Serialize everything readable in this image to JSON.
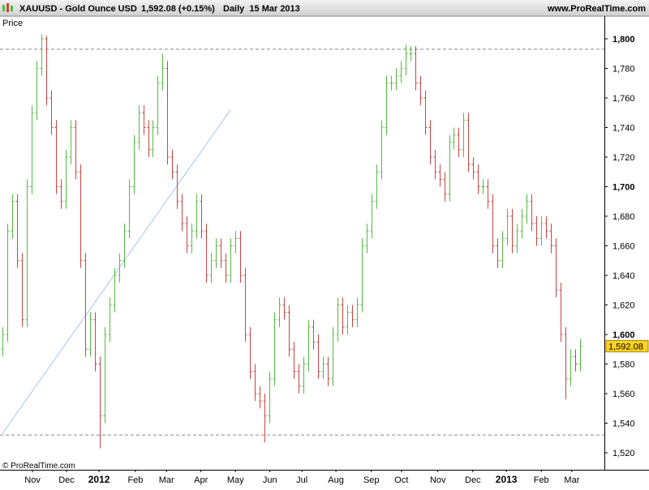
{
  "header": {
    "symbol": "XAUUSD - Gold Ounce USD",
    "quote": "1,592.08 (+0.15%)",
    "period": "Daily  15 Mar 2013",
    "site": "www.ProRealTime.com"
  },
  "chart_data": {
    "type": "ohlc",
    "y_label": "Price",
    "footer": "© ProRealTime.com",
    "up_color": "#55bb44",
    "down_color": "#cc4444",
    "xlim": [
      -0.5,
      124
    ],
    "ylim": [
      1508.5,
      1815.3
    ],
    "xticks": [
      {
        "value": 6.2,
        "label": "Nov"
      },
      {
        "value": 13.2,
        "label": "Dec"
      },
      {
        "value": 19.9,
        "label": "2012"
      },
      {
        "value": 27.4,
        "label": "Feb"
      },
      {
        "value": 33.8,
        "label": "Mar"
      },
      {
        "value": 40.9,
        "label": "Apr"
      },
      {
        "value": 48,
        "label": "May"
      },
      {
        "value": 55.1,
        "label": "Jun"
      },
      {
        "value": 61.7,
        "label": "Jul"
      },
      {
        "value": 68.7,
        "label": "Aug"
      },
      {
        "value": 76,
        "label": "Sep"
      },
      {
        "value": 82.2,
        "label": "Oct"
      },
      {
        "value": 89.7,
        "label": "Nov"
      },
      {
        "value": 96.9,
        "label": "Dec"
      },
      {
        "value": 103.8,
        "label": "2013"
      },
      {
        "value": 111,
        "label": "Feb"
      },
      {
        "value": 117.3,
        "label": "Mar"
      }
    ],
    "yticks": [
      {
        "value": 1520,
        "label": "1,520"
      },
      {
        "value": 1540,
        "label": "1,540"
      },
      {
        "value": 1560,
        "label": "1,560"
      },
      {
        "value": 1580,
        "label": "1,580"
      },
      {
        "value": 1600,
        "label": "1,600"
      },
      {
        "value": 1620,
        "label": "1,620"
      },
      {
        "value": 1640,
        "label": "1,640"
      },
      {
        "value": 1660,
        "label": "1,660"
      },
      {
        "value": 1680,
        "label": "1,680"
      },
      {
        "value": 1700,
        "label": "1,700"
      },
      {
        "value": 1720,
        "label": "1,720"
      },
      {
        "value": 1740,
        "label": "1,740"
      },
      {
        "value": 1760,
        "label": "1,760"
      },
      {
        "value": 1780,
        "label": "1,780"
      },
      {
        "value": 1800,
        "label": "1,800"
      }
    ],
    "hlines": [
      1793,
      1532
    ],
    "trend_line": {
      "x": [
        0,
        47
      ],
      "y": [
        1533,
        1752
      ]
    },
    "last_price": {
      "value": 1592.08,
      "label": "1,592.08"
    },
    "open": [
      1590,
      1600,
      1670,
      1690,
      1650,
      1610,
      1700,
      1750,
      1780,
      1800,
      1760,
      1740,
      1700,
      1690,
      1720,
      1740,
      1710,
      1650,
      1590,
      1610,
      1580,
      1545,
      1600,
      1620,
      1640,
      1650,
      1670,
      1700,
      1730,
      1750,
      1740,
      1725,
      1740,
      1770,
      1780,
      1720,
      1710,
      1690,
      1675,
      1660,
      1670,
      1690,
      1670,
      1640,
      1650,
      1660,
      1650,
      1640,
      1660,
      1665,
      1640,
      1600,
      1575,
      1560,
      1555,
      1545,
      1570,
      1610,
      1620,
      1615,
      1590,
      1575,
      1565,
      1580,
      1605,
      1595,
      1575,
      1580,
      1570,
      1600,
      1620,
      1605,
      1615,
      1610,
      1620,
      1660,
      1670,
      1690,
      1710,
      1740,
      1770,
      1770,
      1775,
      1780,
      1790,
      1790,
      1770,
      1760,
      1740,
      1720,
      1710,
      1705,
      1695,
      1730,
      1735,
      1725,
      1745,
      1715,
      1710,
      1700,
      1700,
      1690,
      1660,
      1650,
      1665,
      1680,
      1660,
      1670,
      1680,
      1690,
      1675,
      1665,
      1675,
      1670,
      1660,
      1630,
      1600,
      1570,
      1585,
      1580
    ],
    "high": [
      1605,
      1675,
      1695,
      1695,
      1655,
      1705,
      1755,
      1785,
      1803,
      1802,
      1765,
      1745,
      1705,
      1725,
      1745,
      1745,
      1715,
      1655,
      1615,
      1615,
      1585,
      1605,
      1625,
      1645,
      1655,
      1675,
      1705,
      1735,
      1755,
      1755,
      1745,
      1745,
      1775,
      1790,
      1785,
      1725,
      1715,
      1695,
      1680,
      1675,
      1695,
      1695,
      1675,
      1655,
      1665,
      1665,
      1655,
      1665,
      1670,
      1670,
      1645,
      1605,
      1580,
      1565,
      1560,
      1575,
      1615,
      1625,
      1625,
      1620,
      1595,
      1580,
      1585,
      1610,
      1610,
      1600,
      1585,
      1585,
      1605,
      1625,
      1625,
      1620,
      1620,
      1625,
      1665,
      1675,
      1695,
      1715,
      1745,
      1775,
      1775,
      1780,
      1785,
      1796,
      1795,
      1795,
      1775,
      1765,
      1745,
      1725,
      1715,
      1710,
      1735,
      1740,
      1740,
      1750,
      1750,
      1720,
      1715,
      1705,
      1705,
      1695,
      1665,
      1670,
      1685,
      1685,
      1675,
      1685,
      1695,
      1695,
      1680,
      1680,
      1680,
      1675,
      1665,
      1635,
      1605,
      1590,
      1590,
      1597
    ],
    "low": [
      1585,
      1595,
      1665,
      1645,
      1605,
      1605,
      1695,
      1745,
      1775,
      1755,
      1735,
      1695,
      1685,
      1685,
      1715,
      1705,
      1645,
      1585,
      1585,
      1575,
      1523,
      1540,
      1595,
      1615,
      1635,
      1645,
      1665,
      1695,
      1725,
      1735,
      1720,
      1720,
      1735,
      1765,
      1715,
      1705,
      1685,
      1670,
      1655,
      1655,
      1665,
      1665,
      1635,
      1635,
      1645,
      1645,
      1635,
      1635,
      1655,
      1635,
      1595,
      1570,
      1555,
      1550,
      1527,
      1540,
      1565,
      1605,
      1610,
      1585,
      1570,
      1560,
      1560,
      1575,
      1590,
      1570,
      1570,
      1565,
      1565,
      1595,
      1600,
      1600,
      1605,
      1605,
      1615,
      1655,
      1665,
      1685,
      1705,
      1735,
      1765,
      1765,
      1770,
      1775,
      1785,
      1765,
      1755,
      1735,
      1715,
      1705,
      1700,
      1690,
      1690,
      1725,
      1720,
      1720,
      1710,
      1705,
      1695,
      1695,
      1685,
      1655,
      1645,
      1645,
      1660,
      1655,
      1655,
      1665,
      1675,
      1670,
      1660,
      1660,
      1665,
      1655,
      1625,
      1595,
      1556,
      1565,
      1575,
      1575
    ],
    "close": [
      1600,
      1670,
      1690,
      1650,
      1610,
      1700,
      1750,
      1780,
      1800,
      1760,
      1740,
      1700,
      1690,
      1720,
      1740,
      1710,
      1650,
      1590,
      1610,
      1580,
      1545,
      1600,
      1620,
      1640,
      1650,
      1670,
      1700,
      1730,
      1750,
      1740,
      1725,
      1740,
      1770,
      1780,
      1720,
      1710,
      1690,
      1675,
      1660,
      1670,
      1690,
      1670,
      1640,
      1650,
      1660,
      1650,
      1640,
      1660,
      1665,
      1640,
      1600,
      1575,
      1560,
      1555,
      1545,
      1570,
      1610,
      1620,
      1615,
      1590,
      1575,
      1565,
      1580,
      1605,
      1595,
      1575,
      1580,
      1570,
      1600,
      1620,
      1605,
      1615,
      1610,
      1620,
      1660,
      1670,
      1690,
      1710,
      1740,
      1770,
      1770,
      1775,
      1780,
      1790,
      1790,
      1770,
      1760,
      1740,
      1720,
      1710,
      1705,
      1695,
      1730,
      1735,
      1725,
      1745,
      1715,
      1710,
      1700,
      1700,
      1690,
      1660,
      1650,
      1665,
      1680,
      1660,
      1670,
      1680,
      1690,
      1675,
      1665,
      1675,
      1670,
      1660,
      1630,
      1600,
      1570,
      1585,
      1580,
      1592.08
    ]
  }
}
